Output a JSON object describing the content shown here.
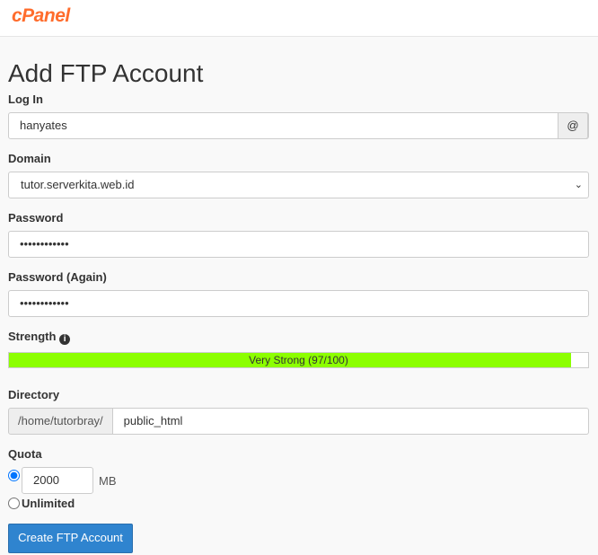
{
  "brand": "cPanel",
  "title": "Add FTP Account",
  "login": {
    "label": "Log In",
    "value": "hanyates",
    "addon": "@"
  },
  "domain": {
    "label": "Domain",
    "value": "tutor.serverkita.web.id"
  },
  "password": {
    "label": "Password",
    "value": "••••••••••••"
  },
  "password_again": {
    "label": "Password (Again)",
    "value": "••••••••••••"
  },
  "strength": {
    "label": "Strength",
    "text": "Very Strong (97/100)",
    "percent": 97,
    "color": "#8cff00"
  },
  "directory": {
    "label": "Directory",
    "prefix": "/home/tutorbray/",
    "value": "public_html"
  },
  "quota": {
    "label": "Quota",
    "value": "2000",
    "unit": "MB",
    "unlimited_label": "Unlimited",
    "selected": "limited"
  },
  "submit_label": "Create FTP Account"
}
